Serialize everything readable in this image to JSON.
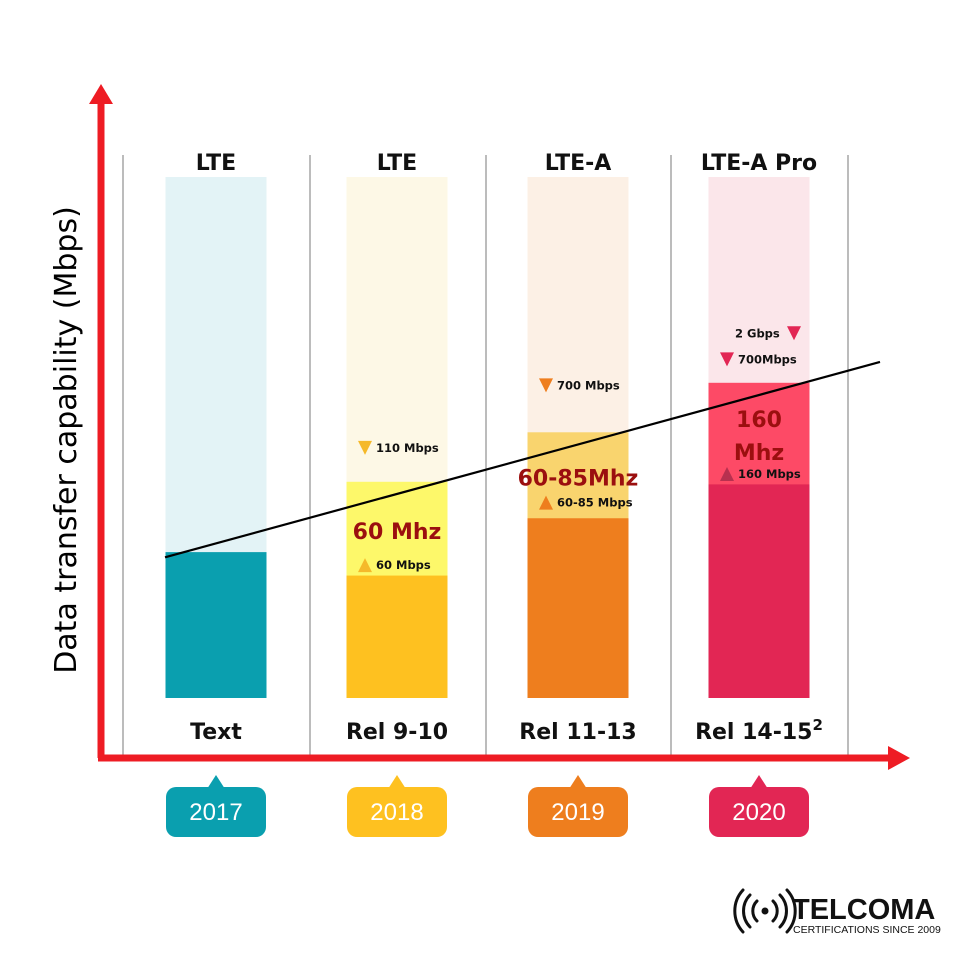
{
  "y_axis_title": "Data transfer capability (Mbps)",
  "colors": {
    "axis": "#ee1c24",
    "trend": "#000000",
    "grid": "#7a7a7a",
    "bandwidth_text": "#9b0f0f"
  },
  "columns": [
    {
      "generation": "LTE",
      "release": "Text",
      "year": "2017",
      "color": "#0a9faf",
      "bg_color": "#e3f3f6",
      "mid_color": "#e3f3f6",
      "fill_level": 0.28,
      "mid_level": 0.28,
      "bandwidth": [],
      "markers": []
    },
    {
      "generation": "LTE",
      "release": "Rel 9-10",
      "year": "2018",
      "color": "#fec120",
      "bg_color": "#fdf8e6",
      "mid_color": "#fdf86a",
      "fill_level": 0.235,
      "mid_level": 0.415,
      "bandwidth": [
        "60 Mhz"
      ],
      "markers": [
        {
          "label": "110 Mbps",
          "dir": "down",
          "color": "#f5b92a",
          "level": 0.48
        },
        {
          "label": "60 Mbps",
          "dir": "up",
          "color": "#f5b92a",
          "level": 0.255
        }
      ]
    },
    {
      "generation": "LTE-A",
      "release": "Rel 11-13",
      "year": "2019",
      "color": "#ee7e1e",
      "bg_color": "#fcf0e5",
      "mid_color": "#f9d46e",
      "fill_level": 0.345,
      "mid_level": 0.51,
      "bandwidth": [
        "60-85Mhz"
      ],
      "markers": [
        {
          "label": "700 Mbps",
          "dir": "down",
          "color": "#ee7e1e",
          "level": 0.6
        },
        {
          "label": "60-85 Mbps",
          "dir": "up",
          "color": "#ee7e1e",
          "level": 0.375
        }
      ]
    },
    {
      "generation": "LTE-A Pro",
      "superscript": "2",
      "release": "Rel 14-15",
      "year": "2020",
      "color": "#e22654",
      "bg_color": "#fbe6ea",
      "mid_color": "#fd4a66",
      "fill_level": 0.41,
      "mid_level": 0.605,
      "bandwidth": [
        "160",
        "Mhz"
      ],
      "markers": [
        {
          "label": "2 Gbps",
          "dir": "down",
          "color": "#e22654",
          "level": 0.7,
          "icon_after": true
        },
        {
          "label": "700Mbps",
          "dir": "down",
          "color": "#e22654",
          "level": 0.65
        },
        {
          "label": "160 Mbps",
          "dir": "up",
          "color": "#b8304f",
          "level": 0.43
        }
      ]
    }
  ],
  "trend_line": {
    "start": [
      0,
      0.27
    ],
    "end": [
      4.5,
      0.645
    ]
  },
  "brand": {
    "name": "TELCOMA",
    "tagline": "CERTIFICATIONS SINCE 2009"
  }
}
